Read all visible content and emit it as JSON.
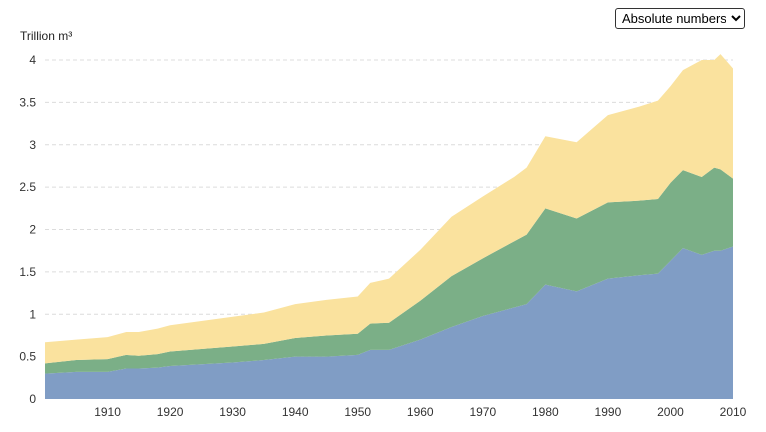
{
  "selector": {
    "options": [
      "Absolute numbers"
    ],
    "selected": "Absolute numbers"
  },
  "chart_data": {
    "type": "area",
    "stacked": true,
    "ylabel": "Trillion m³",
    "xlim": [
      1900,
      2010
    ],
    "ylim": [
      0,
      4
    ],
    "yticks": [
      "0",
      "0.5",
      "1",
      "1.5",
      "2",
      "2.5",
      "3",
      "3.5",
      "4"
    ],
    "xticks": [
      "1910",
      "1920",
      "1930",
      "1940",
      "1950",
      "1960",
      "1970",
      "1980",
      "1990",
      "2000",
      "2010"
    ],
    "grid": true,
    "legend": "none",
    "colors": {
      "series1": "#809dc5",
      "series2": "#7baf87",
      "series3": "#fae29e"
    },
    "x": [
      1900,
      1905,
      1910,
      1913,
      1915,
      1918,
      1920,
      1925,
      1930,
      1935,
      1940,
      1945,
      1950,
      1952,
      1955,
      1960,
      1965,
      1970,
      1975,
      1977,
      1980,
      1985,
      1990,
      1995,
      1998,
      2000,
      2002,
      2005,
      2007,
      2008,
      2010
    ],
    "series": [
      {
        "values": [
          0.3,
          0.32,
          0.32,
          0.36,
          0.36,
          0.37,
          0.39,
          0.41,
          0.43,
          0.46,
          0.5,
          0.5,
          0.52,
          0.58,
          0.58,
          0.7,
          0.85,
          0.98,
          1.08,
          1.12,
          1.35,
          1.27,
          1.42,
          1.46,
          1.48,
          1.63,
          1.78,
          1.7,
          1.75,
          1.75,
          1.8
        ]
      },
      {
        "values": [
          0.12,
          0.14,
          0.15,
          0.16,
          0.15,
          0.16,
          0.17,
          0.18,
          0.19,
          0.19,
          0.22,
          0.25,
          0.25,
          0.31,
          0.32,
          0.46,
          0.6,
          0.68,
          0.78,
          0.82,
          0.9,
          0.86,
          0.9,
          0.88,
          0.88,
          0.92,
          0.92,
          0.92,
          0.98,
          0.96,
          0.8
        ]
      },
      {
        "values": [
          0.25,
          0.24,
          0.26,
          0.27,
          0.28,
          0.3,
          0.31,
          0.33,
          0.35,
          0.37,
          0.4,
          0.42,
          0.44,
          0.48,
          0.52,
          0.6,
          0.7,
          0.73,
          0.76,
          0.79,
          0.85,
          0.9,
          1.03,
          1.11,
          1.16,
          1.14,
          1.18,
          1.38,
          1.27,
          1.36,
          1.3
        ]
      }
    ]
  }
}
